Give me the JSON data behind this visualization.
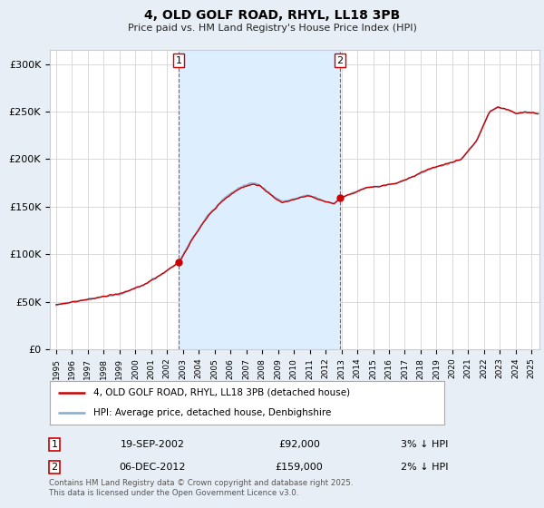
{
  "title": "4, OLD GOLF ROAD, RHYL, LL18 3PB",
  "subtitle": "Price paid vs. HM Land Registry's House Price Index (HPI)",
  "ylabel_ticks": [
    "£0",
    "£50K",
    "£100K",
    "£150K",
    "£200K",
    "£250K",
    "£300K"
  ],
  "ytick_values": [
    0,
    50000,
    100000,
    150000,
    200000,
    250000,
    300000
  ],
  "ylim": [
    0,
    315000
  ],
  "xlim_start": 1994.6,
  "xlim_end": 2025.5,
  "line_color_red": "#cc0000",
  "line_color_blue": "#88aacc",
  "shade_color": "#ddeeff",
  "marker1_x": 2002.72,
  "marker1_y": 92000,
  "marker1_label": "1",
  "marker2_x": 2012.92,
  "marker2_y": 159000,
  "marker2_label": "2",
  "legend_line1": "4, OLD GOLF ROAD, RHYL, LL18 3PB (detached house)",
  "legend_line2": "HPI: Average price, detached house, Denbighshire",
  "transaction1_num": "1",
  "transaction1_date": "19-SEP-2002",
  "transaction1_price": "£92,000",
  "transaction1_hpi": "3% ↓ HPI",
  "transaction2_num": "2",
  "transaction2_date": "06-DEC-2012",
  "transaction2_price": "£159,000",
  "transaction2_hpi": "2% ↓ HPI",
  "footer": "Contains HM Land Registry data © Crown copyright and database right 2025.\nThis data is licensed under the Open Government Licence v3.0.",
  "bg_color": "#e8eef5",
  "plot_bg_color": "#ffffff",
  "grid_color": "#cccccc"
}
